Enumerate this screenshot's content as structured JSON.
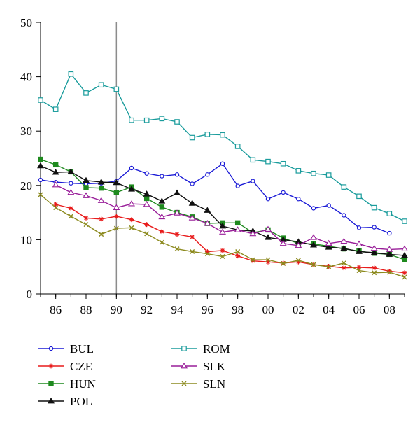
{
  "chart_data": {
    "type": "line",
    "title": "",
    "xlabel": "",
    "ylabel": "",
    "xlim": [
      1985,
      2009
    ],
    "ylim": [
      0,
      50
    ],
    "yticks": [
      0,
      10,
      20,
      30,
      40,
      50
    ],
    "xticks": [
      {
        "value": 1986,
        "label": "86"
      },
      {
        "value": 1988,
        "label": "88"
      },
      {
        "value": 1990,
        "label": "90"
      },
      {
        "value": 1992,
        "label": "92"
      },
      {
        "value": 1994,
        "label": "94"
      },
      {
        "value": 1996,
        "label": "96"
      },
      {
        "value": 1998,
        "label": "98"
      },
      {
        "value": 2000,
        "label": "00"
      },
      {
        "value": 2002,
        "label": "02"
      },
      {
        "value": 2004,
        "label": "04"
      },
      {
        "value": 2006,
        "label": "06"
      },
      {
        "value": 2008,
        "label": "08"
      }
    ],
    "vertical_line_x": 1990,
    "legend_position": "bottom",
    "series": [
      {
        "name": "BUL",
        "color": "#1a1ad6",
        "marker": "circle-open",
        "x": [
          1985,
          1986,
          1987,
          1988,
          1989,
          1990,
          1991,
          1992,
          1993,
          1994,
          1995,
          1996,
          1997,
          1998,
          1999,
          2000,
          2001,
          2002,
          2003,
          2004,
          2005,
          2006,
          2007,
          2008
        ],
        "values": [
          21.0,
          20.6,
          20.4,
          20.3,
          20.4,
          20.8,
          23.2,
          22.2,
          21.7,
          22.0,
          20.3,
          22.0,
          24.0,
          19.9,
          20.8,
          17.5,
          18.7,
          17.5,
          15.8,
          16.3,
          14.5,
          12.2,
          12.3,
          11.2
        ]
      },
      {
        "name": "CZE",
        "color": "#e81c1c",
        "marker": "star",
        "x": [
          1986,
          1987,
          1988,
          1989,
          1990,
          1991,
          1992,
          1993,
          1994,
          1995,
          1996,
          1997,
          1998,
          1999,
          2000,
          2001,
          2002,
          2003,
          2004,
          2005,
          2006,
          2007,
          2008,
          2009
        ],
        "values": [
          16.5,
          15.8,
          14.0,
          13.8,
          14.3,
          13.7,
          12.8,
          11.5,
          11.0,
          10.5,
          7.8,
          8.0,
          7.0,
          6.1,
          5.9,
          5.7,
          5.9,
          5.4,
          5.1,
          4.8,
          4.9,
          4.8,
          4.2,
          3.9
        ]
      },
      {
        "name": "HUN",
        "color": "#1f8a1f",
        "marker": "square-filled",
        "x": [
          1985,
          1986,
          1987,
          1988,
          1989,
          1990,
          1991,
          1992,
          1993,
          1994,
          1995,
          1996,
          1997,
          1998,
          1999,
          2000,
          2001,
          2002,
          2003,
          2004,
          2005,
          2006,
          2007,
          2008,
          2009
        ],
        "values": [
          24.8,
          23.8,
          22.5,
          19.6,
          19.5,
          18.7,
          19.7,
          17.6,
          16.0,
          15.0,
          14.2,
          13.0,
          13.1,
          13.1,
          11.3,
          11.8,
          10.3,
          9.3,
          9.2,
          8.8,
          8.3,
          7.9,
          7.5,
          7.3,
          6.3
        ]
      },
      {
        "name": "POL",
        "color": "#111111",
        "marker": "triangle-filled",
        "x": [
          1985,
          1986,
          1987,
          1988,
          1989,
          1990,
          1991,
          1992,
          1993,
          1994,
          1995,
          1996,
          1997,
          1998,
          1999,
          2000,
          2001,
          2002,
          2003,
          2004,
          2005,
          2006,
          2007,
          2008,
          2009
        ],
        "values": [
          23.6,
          22.4,
          22.5,
          20.9,
          20.6,
          20.5,
          19.3,
          18.4,
          17.1,
          18.6,
          16.7,
          15.4,
          12.5,
          11.8,
          11.6,
          10.4,
          10.0,
          9.6,
          9.0,
          8.6,
          8.4,
          7.8,
          7.6,
          7.3,
          7.1
        ]
      },
      {
        "name": "ROM",
        "color": "#1a9c9c",
        "marker": "square-open",
        "x": [
          1985,
          1986,
          1987,
          1988,
          1989,
          1990,
          1991,
          1992,
          1993,
          1994,
          1995,
          1996,
          1997,
          1998,
          1999,
          2000,
          2001,
          2002,
          2003,
          2004,
          2005,
          2006,
          2007,
          2008,
          2009
        ],
        "values": [
          35.7,
          34.0,
          40.5,
          37.0,
          38.5,
          37.7,
          32.0,
          32.0,
          32.3,
          31.7,
          28.8,
          29.4,
          29.3,
          27.2,
          24.7,
          24.4,
          24.0,
          22.7,
          22.2,
          21.9,
          19.7,
          18.0,
          15.9,
          14.8,
          13.4
        ]
      },
      {
        "name": "SLK",
        "color": "#991e99",
        "marker": "triangle-open",
        "x": [
          1986,
          1987,
          1988,
          1989,
          1990,
          1991,
          1992,
          1993,
          1994,
          1995,
          1996,
          1997,
          1998,
          1999,
          2000,
          2001,
          2002,
          2003,
          2004,
          2005,
          2006,
          2007,
          2008,
          2009
        ],
        "values": [
          20.1,
          18.7,
          18.1,
          17.2,
          15.9,
          16.6,
          16.5,
          14.2,
          14.9,
          14.0,
          13.0,
          11.4,
          11.8,
          11.1,
          11.9,
          9.3,
          8.9,
          10.4,
          9.3,
          9.7,
          9.2,
          8.4,
          8.2,
          8.3
        ]
      },
      {
        "name": "SLN",
        "color": "#8c8a1e",
        "marker": "x",
        "x": [
          1985,
          1986,
          1987,
          1988,
          1989,
          1990,
          1991,
          1992,
          1993,
          1994,
          1995,
          1996,
          1997,
          1998,
          1999,
          2000,
          2001,
          2002,
          2003,
          2004,
          2005,
          2006,
          2007,
          2008,
          2009
        ],
        "values": [
          18.3,
          15.9,
          14.3,
          12.8,
          11.0,
          12.1,
          12.2,
          11.1,
          9.5,
          8.3,
          7.8,
          7.4,
          6.9,
          7.8,
          6.3,
          6.3,
          5.6,
          6.2,
          5.4,
          5.0,
          5.7,
          4.3,
          3.9,
          4.0,
          3.1
        ]
      }
    ]
  }
}
